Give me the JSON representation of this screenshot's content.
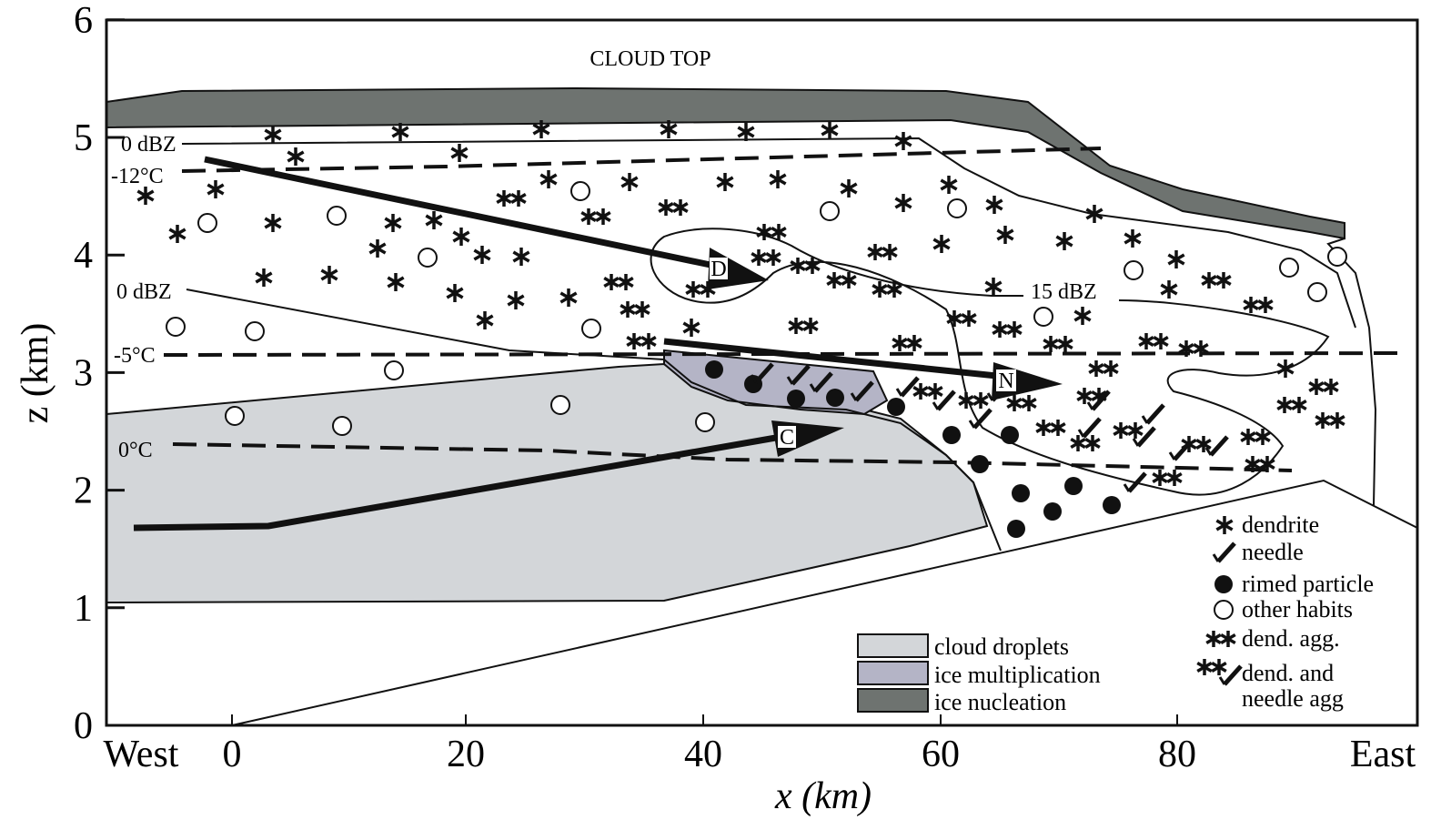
{
  "axes": {
    "x_label": "x (km)",
    "z_label": "z (km)",
    "x_ticks": [
      "West",
      "0",
      "20",
      "40",
      "60",
      "80",
      "East"
    ],
    "z_ticks": [
      "0",
      "1",
      "2",
      "3",
      "4",
      "5",
      "6"
    ]
  },
  "annotations": {
    "cloud_top": "CLOUD TOP",
    "contours": [
      "0 dBZ",
      "0 dBZ",
      "15 dBZ"
    ],
    "isotherms": [
      "-12°C",
      "-5°C",
      "0°C"
    ],
    "arrows": [
      "D",
      "N",
      "C"
    ]
  },
  "legend": {
    "symbols": [
      "dendrite",
      "needle",
      "rimed particle",
      "other habits",
      "dend. agg.",
      "dend. and",
      "needle agg"
    ],
    "shading": [
      "cloud droplets",
      "ice multiplication",
      "ice nucleation"
    ]
  }
}
